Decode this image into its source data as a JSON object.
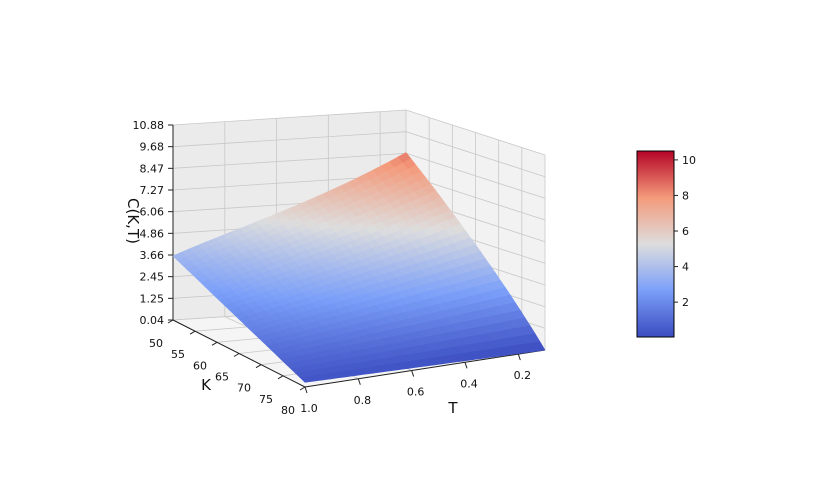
{
  "chart_data": {
    "type": "surface",
    "xlabel": "T",
    "ylabel": "K",
    "zlabel": "C(K,T)",
    "x_ticks": [
      "1.0",
      "0.8",
      "0.6",
      "0.4",
      "0.2"
    ],
    "y_ticks": [
      "50",
      "55",
      "60",
      "65",
      "70",
      "75",
      "80"
    ],
    "z_ticks": [
      "0.04",
      "1.25",
      "2.45",
      "3.66",
      "4.86",
      "6.06",
      "7.27",
      "8.47",
      "9.68",
      "10.88"
    ],
    "zlim": [
      0.04,
      10.88
    ],
    "colorbar": {
      "colormap": "coolwarm",
      "range": [
        0.04,
        10.5
      ],
      "ticks": [
        "2",
        "4",
        "6",
        "8",
        "10"
      ]
    },
    "surface_corners": [
      {
        "T": 1.0,
        "K": 50,
        "C": 3.6
      },
      {
        "T": 0.1,
        "K": 50,
        "C": 10.5
      },
      {
        "T": 1.0,
        "K": 80,
        "C": 0.3
      },
      {
        "T": 0.1,
        "K": 80,
        "C": 0.04
      }
    ],
    "grid": true,
    "colors": {
      "low": "#3b4cc0",
      "mid": "#dddddd",
      "high": "#b40426"
    }
  }
}
